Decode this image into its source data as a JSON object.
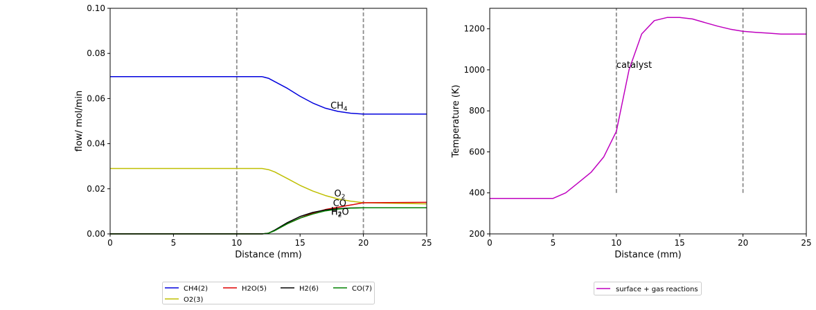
{
  "chart_data": [
    {
      "type": "line",
      "xlabel": "Distance (mm)",
      "ylabel": "flow/ mol/min",
      "xlim": [
        0,
        25
      ],
      "ylim": [
        0,
        0.1
      ],
      "xticks": [
        "0",
        "5",
        "10",
        "15",
        "20",
        "25"
      ],
      "yticks": [
        "0.00",
        "0.02",
        "0.04",
        "0.06",
        "0.08",
        "0.10"
      ],
      "vlines": [
        10,
        20
      ],
      "series": [
        {
          "name": "CH4(2)",
          "color": "#0000dd",
          "x": [
            0,
            12,
            12.5,
            13,
            14,
            15,
            16,
            17,
            18,
            19,
            20,
            25
          ],
          "y": [
            0.0697,
            0.0697,
            0.069,
            0.0675,
            0.0645,
            0.061,
            0.058,
            0.0557,
            0.0543,
            0.0535,
            0.0531,
            0.0531
          ]
        },
        {
          "name": "O2(3)",
          "color": "#bfbf00",
          "x": [
            0,
            12,
            12.5,
            13,
            14,
            15,
            16,
            17,
            18,
            19,
            20,
            25
          ],
          "y": [
            0.029,
            0.029,
            0.0285,
            0.0275,
            0.0245,
            0.0215,
            0.019,
            0.017,
            0.0155,
            0.0145,
            0.0138,
            0.0133
          ]
        },
        {
          "name": "H2O(5)",
          "color": "#dd0000",
          "x": [
            0,
            12,
            12.5,
            13,
            14,
            15,
            16,
            17,
            18,
            19,
            20,
            25
          ],
          "y": [
            0,
            0,
            0.0003,
            0.0015,
            0.0045,
            0.007,
            0.0092,
            0.0108,
            0.0118,
            0.0128,
            0.0138,
            0.014
          ]
        },
        {
          "name": "H2(6)",
          "color": "#000000",
          "x": [
            0,
            12,
            12.5,
            13,
            14,
            15,
            16,
            17,
            18,
            19,
            20,
            25
          ],
          "y": [
            0,
            0,
            0.0003,
            0.0017,
            0.005,
            0.0077,
            0.0095,
            0.0106,
            0.0112,
            0.0115,
            0.0116,
            0.0116
          ]
        },
        {
          "name": "CO(7)",
          "color": "#008000",
          "x": [
            0,
            12,
            12.5,
            13,
            14,
            15,
            16,
            17,
            18,
            19,
            20,
            25
          ],
          "y": [
            0,
            0,
            0.0003,
            0.0014,
            0.0045,
            0.007,
            0.0088,
            0.0102,
            0.011,
            0.0114,
            0.0116,
            0.0116
          ]
        }
      ],
      "annotations": [
        {
          "text": "CH",
          "sub": "4",
          "x": 17.4,
          "y": 0.0555
        },
        {
          "text": "O",
          "sub": "2",
          "x": 17.7,
          "y": 0.0165
        },
        {
          "text": "CO",
          "sub": "",
          "x": 17.6,
          "y": 0.0122
        },
        {
          "text": "H",
          "sub": "2",
          "x": 17.45,
          "y": 0.0089
        },
        {
          "text": "H",
          "sub": "2",
          "x": 17.45,
          "y": 0.0085,
          "suffix": "O"
        }
      ],
      "legend": {
        "placement": "below",
        "ncol": 4,
        "entries": [
          "CH4(2)",
          "H2O(5)",
          "H2(6)",
          "CO(7)",
          "O2(3)"
        ]
      }
    },
    {
      "type": "line",
      "xlabel": "Distance (mm)",
      "ylabel": "Temperature (K)",
      "xlim": [
        0,
        25
      ],
      "ylim": [
        200,
        1300
      ],
      "xticks": [
        "0",
        "5",
        "10",
        "15",
        "20",
        "25"
      ],
      "yticks": [
        "200",
        "400",
        "600",
        "800",
        "1000",
        "1200"
      ],
      "vlines": [
        10,
        20
      ],
      "vline_range": [
        400,
        1300
      ],
      "series": [
        {
          "name": "surface + gas reactions",
          "color": "#bf00bf",
          "x": [
            0,
            5,
            6,
            7,
            8,
            9,
            10,
            11,
            12,
            13,
            14,
            15,
            16,
            17,
            18,
            19,
            20,
            21,
            22,
            23,
            24,
            25
          ],
          "y": [
            373,
            373,
            400,
            450,
            500,
            575,
            700,
            1000,
            1175,
            1240,
            1255,
            1255,
            1248,
            1230,
            1213,
            1198,
            1188,
            1183,
            1179,
            1174,
            1174,
            1174
          ]
        }
      ],
      "annotations": [
        {
          "text": "catalyst",
          "x": 10,
          "y": 1010
        }
      ],
      "legend": {
        "placement": "below",
        "entries": [
          "surface + gas reactions"
        ]
      }
    }
  ]
}
